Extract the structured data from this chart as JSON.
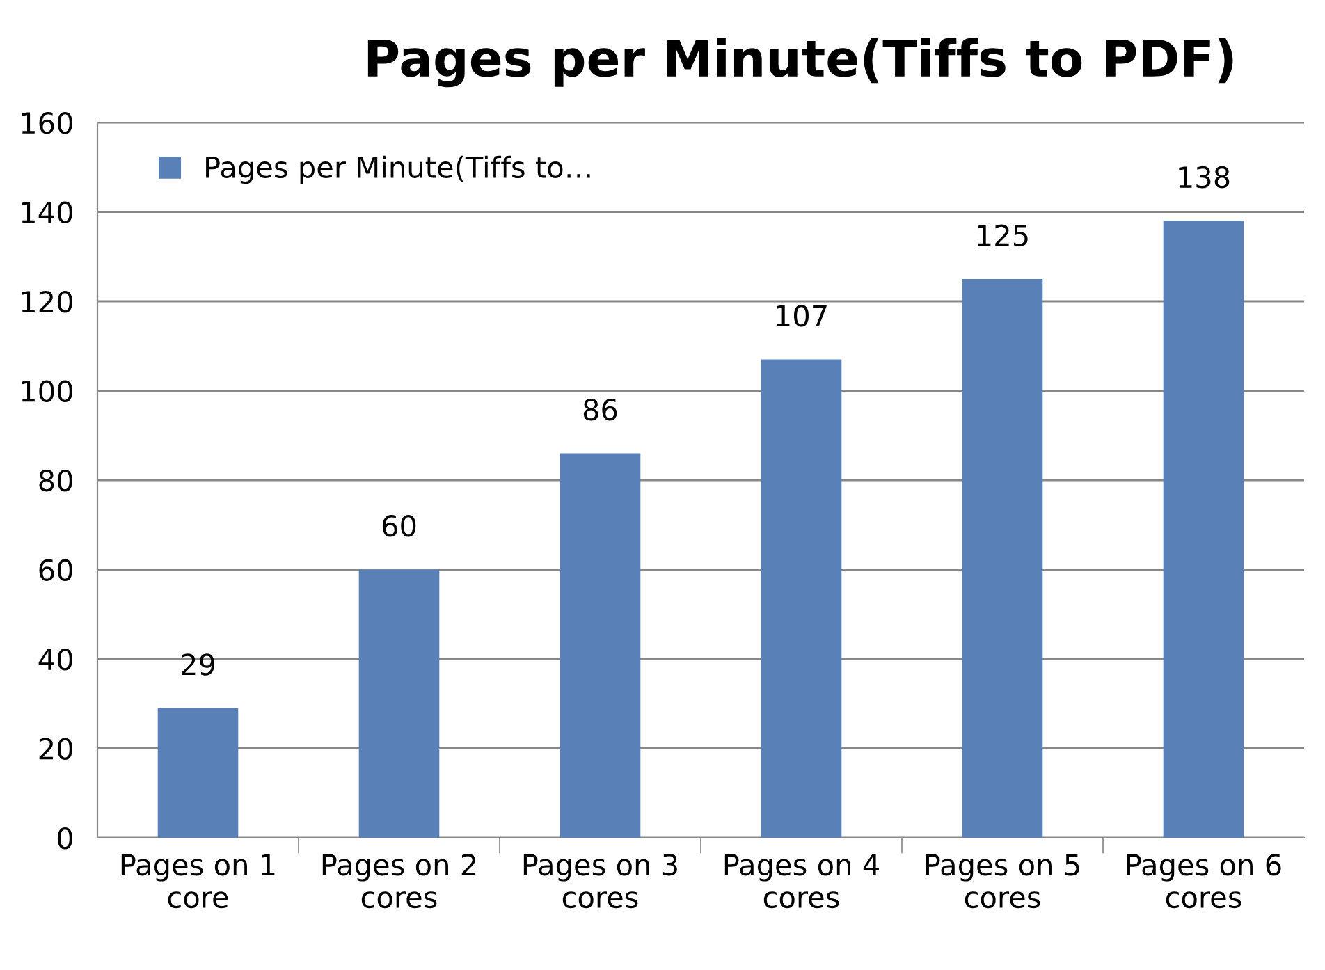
{
  "chart_data": {
    "type": "bar",
    "title": "Pages per Minute(Tiffs to PDF)",
    "categories": [
      "Pages on 1\ncore",
      "Pages on 2\ncores",
      "Pages on 3\ncores",
      "Pages on 4\ncores",
      "Pages on 5\ncores",
      "Pages on 6\ncores"
    ],
    "series": [
      {
        "name": "Pages per Minute(Tiffs to…",
        "color": "#5a80b8",
        "values": [
          29,
          60,
          86,
          107,
          125,
          138
        ]
      }
    ],
    "ylim": [
      0,
      160
    ],
    "yticks": [
      0,
      20,
      40,
      60,
      80,
      100,
      120,
      140,
      160
    ],
    "grid": "y",
    "legend": "top left",
    "data_labels": true
  }
}
